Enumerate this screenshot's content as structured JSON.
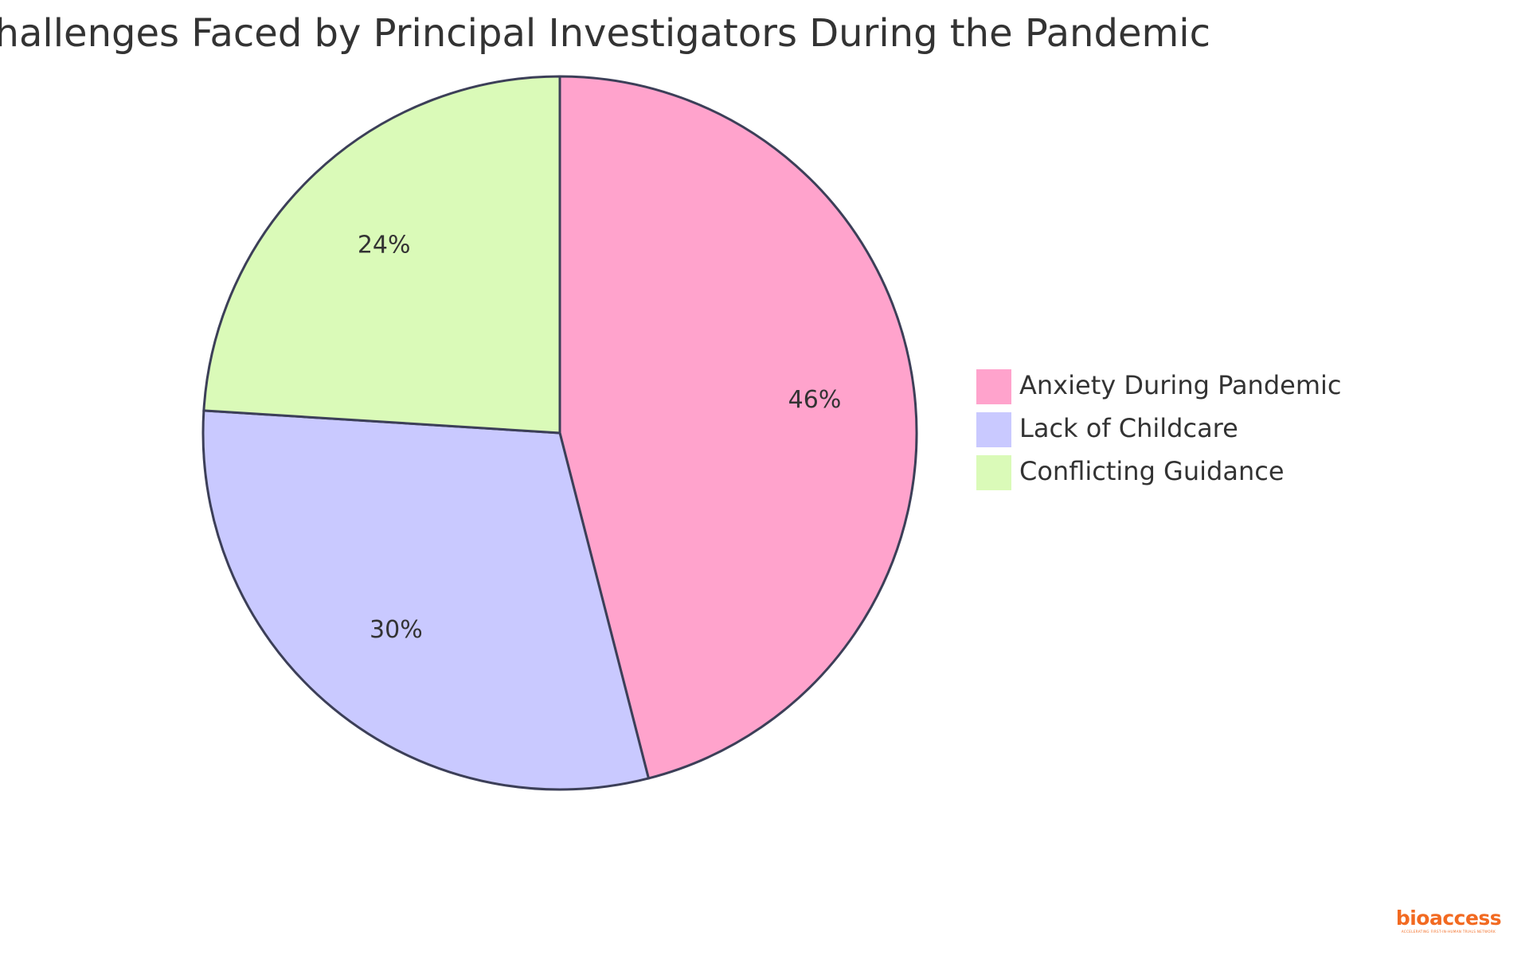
{
  "chart_data": {
    "type": "pie",
    "title": "Challenges Faced by Principal Investigators During the Pandemic",
    "slices": [
      {
        "label": "Anxiety During Pandemic",
        "value": 46,
        "display": "46%",
        "color": "#ffa3cc"
      },
      {
        "label": "Lack of Childcare",
        "value": 30,
        "display": "30%",
        "color": "#c9c9ff"
      },
      {
        "label": "Conflicting Guidance",
        "value": 24,
        "display": "24%",
        "color": "#dafab8"
      }
    ],
    "legend_position": "right",
    "start_angle": "top",
    "direction": "clockwise"
  },
  "branding": {
    "name": "bioaccess",
    "tagline": "ACCELERATING FIRST-IN-HUMAN TRIALS NETWORK",
    "color": "#f26a21"
  }
}
